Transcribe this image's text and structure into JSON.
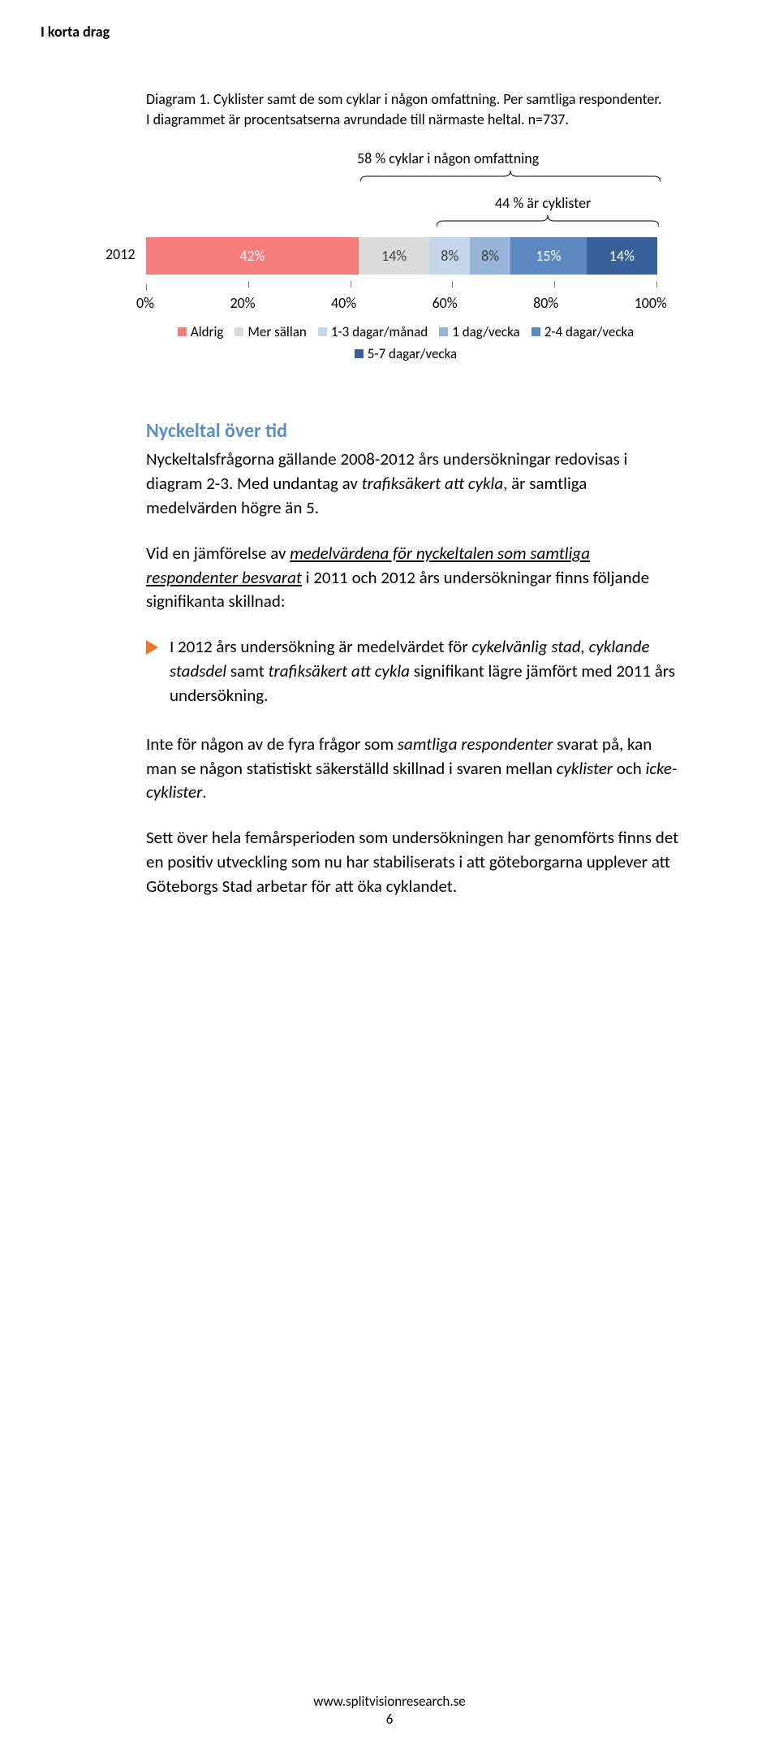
{
  "header": {
    "section": "I korta drag"
  },
  "diagram": {
    "label_line1": "Diagram 1. Cyklister samt de som cyklar i någon omfattning. Per samtliga respondenter.",
    "label_line2": "I diagrammet är procentsatserna avrundade till närmaste heltal. n=737.",
    "annotation_top": "58 % cyklar i någon omfattning",
    "annotation_mid": "44 % är cyklister",
    "year": "2012",
    "segments": [
      {
        "label": "42%",
        "value": 42,
        "color": "#f67d7d"
      },
      {
        "label": "14%",
        "value": 14,
        "color": "#dbdbdb"
      },
      {
        "label": "8%",
        "value": 8,
        "color": "#c6d6ea"
      },
      {
        "label": "8%",
        "value": 8,
        "color": "#97b5d9"
      },
      {
        "label": "15%",
        "value": 15,
        "color": "#5c88c0"
      },
      {
        "label": "14%",
        "value": 14,
        "color": "#38619a"
      }
    ],
    "seg_text_colors": [
      "#ffffff",
      "#404040",
      "#404040",
      "#404040",
      "#ffffff",
      "#ffffff"
    ],
    "axis": {
      "ticks": [
        "0%",
        "20%",
        "40%",
        "60%",
        "80%",
        "100%"
      ]
    },
    "legend": [
      {
        "sw": "#f67d7d",
        "label": "Aldrig"
      },
      {
        "sw": "#dbdbdb",
        "label": "Mer sällan"
      },
      {
        "sw": "#c6d6ea",
        "label": "1-3 dagar/månad"
      },
      {
        "sw": "#97b5d9",
        "label": "1 dag/vecka"
      },
      {
        "sw": "#5c88c0",
        "label": "2-4 dagar/vecka"
      },
      {
        "sw": "#38619a",
        "label": "5-7 dagar/vecka"
      }
    ]
  },
  "heading2": "Nyckeltal över tid",
  "para1_a": "Nyckeltalsfrågorna gällande 2008-2012 års undersökningar redovisas i diagram 2-3. Med undantag av ",
  "para1_i": "trafiksäkert att cykla",
  "para1_b": ", är samtliga medelvärden högre än 5.",
  "para2_a": "Vid en jämförelse av ",
  "para2_u": "medelvärdena för nyckeltalen som samtliga respondenter besvarat",
  "para2_b": " i 2011 och 2012 års undersökningar finns följande signifikanta skillnad:",
  "bullet_color": "#e7792b",
  "bullet_a": "I 2012 års undersökning är medelvärdet för ",
  "bullet_i1": "cykelvänlig stad, cyklande stadsdel",
  "bullet_b": " samt ",
  "bullet_i2": "trafiksäkert att cykla",
  "bullet_c": " signifikant lägre jämfört med 2011 års undersökning.",
  "para3_a": "Inte för någon av de fyra frågor som ",
  "para3_i1": "samtliga respondenter",
  "para3_b": " svarat på, kan man se någon statistiskt säkerställd skillnad i svaren mellan ",
  "para3_i2": "cyklister",
  "para3_c": " och ",
  "para3_i3": "icke-cyklister",
  "para3_d": ".",
  "para4": "Sett över hela femårsperioden som undersökningen har genomförts finns det en positiv utveckling som nu har stabiliserats i att göteborgarna upplever att Göteborgs Stad arbetar för att öka cyklandet.",
  "footer": {
    "url": "www.splitvisionresearch.se",
    "page": "6"
  }
}
